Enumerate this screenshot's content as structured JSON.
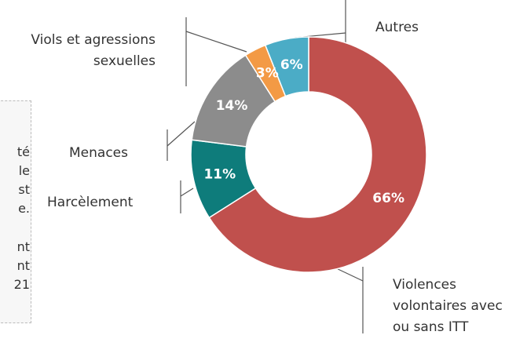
{
  "chart_data": {
    "type": "donut",
    "categories": [
      "Violences volontaires avec ou sans ITT",
      "Harcèlement",
      "Menaces",
      "Viols et agressions sexuelles",
      "Autres"
    ],
    "values": [
      66,
      11,
      14,
      3,
      6
    ],
    "value_labels": [
      "66%",
      "11%",
      "14%",
      "3%",
      "6%"
    ],
    "colors": [
      "#c0504d",
      "#0e7c7b",
      "#8c8c8c",
      "#f39a45",
      "#4bacc6"
    ],
    "side_text": [
      "té",
      "le",
      "st",
      "e.",
      "nt",
      "nt",
      "21"
    ]
  }
}
